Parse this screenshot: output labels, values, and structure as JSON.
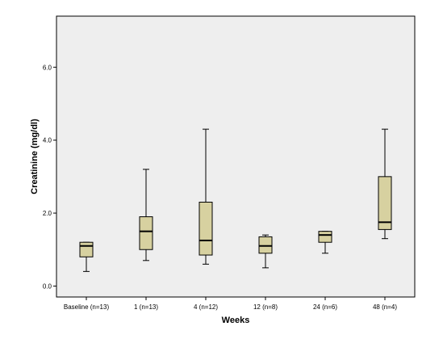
{
  "chart_data": {
    "type": "boxplot",
    "xlabel": "Weeks",
    "ylabel": "Creatinine (mg/dl)",
    "ylim": [
      -0.3,
      7.4
    ],
    "yticks": [
      0.0,
      2.0,
      4.0,
      6.0
    ],
    "ytick_labels": [
      "0.0",
      "2.0",
      "4.0",
      "6.0"
    ],
    "grid": false,
    "colors": {
      "plot_background": "#eeeeee",
      "box_fill": "#d7d1a0",
      "box_stroke": "#000000",
      "axis": "#000000"
    },
    "categories": [
      "Baseline (n=13)",
      "1 (n=13)",
      "4 (n=12)",
      "12 (n=8)",
      "24 (n=6)",
      "48 (n=4)"
    ],
    "boxes": [
      {
        "category": "Baseline (n=13)",
        "min": 0.4,
        "q1": 0.8,
        "median": 1.1,
        "q3": 1.2,
        "max": 1.2
      },
      {
        "category": "1 (n=13)",
        "min": 0.7,
        "q1": 1.0,
        "median": 1.5,
        "q3": 1.9,
        "max": 3.2
      },
      {
        "category": "4 (n=12)",
        "min": 0.6,
        "q1": 0.85,
        "median": 1.25,
        "q3": 2.3,
        "max": 4.3
      },
      {
        "category": "12 (n=8)",
        "min": 0.5,
        "q1": 0.9,
        "median": 1.1,
        "q3": 1.35,
        "max": 1.4
      },
      {
        "category": "24 (n=6)",
        "min": 0.9,
        "q1": 1.2,
        "median": 1.4,
        "q3": 1.5,
        "max": 1.5
      },
      {
        "category": "48 (n=4)",
        "min": 1.3,
        "q1": 1.55,
        "median": 1.75,
        "q3": 3.0,
        "max": 4.3
      }
    ]
  }
}
